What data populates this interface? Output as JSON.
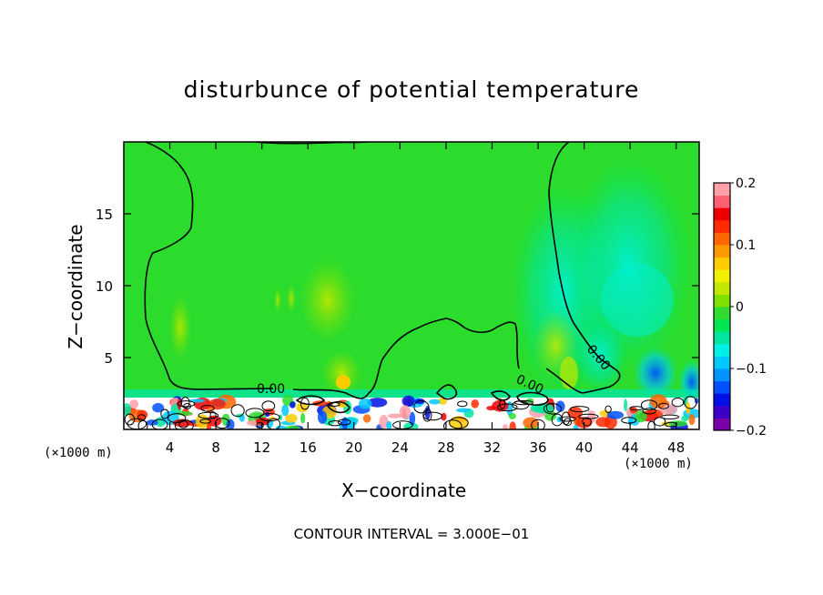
{
  "chart_data": {
    "type": "heatmap",
    "title": "disturbunce of potential temperature",
    "xlabel": "X−coordinate",
    "ylabel": "Z−coordinate",
    "x_unit_label": "(×1000 m)",
    "xlim": [
      0,
      50
    ],
    "ylim": [
      0,
      20
    ],
    "x_ticks": [
      "4",
      "8",
      "12",
      "16",
      "20",
      "24",
      "28",
      "32",
      "36",
      "40",
      "44",
      "48"
    ],
    "y_ticks": [
      "5",
      "10",
      "15"
    ],
    "colorbar": {
      "range": [
        -0.2,
        0.2
      ],
      "tick_labels": [
        "0.2",
        "0.1",
        "0",
        "−0.1",
        "−0.2"
      ],
      "colors": [
        "#7a00a8",
        "#3b00c8",
        "#0010e6",
        "#0050ff",
        "#0094ff",
        "#00c8ff",
        "#00f0e6",
        "#00e6a0",
        "#00e650",
        "#30dc30",
        "#80e000",
        "#c0e800",
        "#f0f000",
        "#ffcc00",
        "#ff9900",
        "#ff6600",
        "#ff2a00",
        "#ee0000",
        "#ff6070",
        "#ffa0a8"
      ]
    },
    "contour_interval_text": "CONTOUR INTERVAL = 3.000E−01",
    "contour_labels": [
      "0.00",
      "0.00",
      "0.00"
    ],
    "grid": false
  }
}
